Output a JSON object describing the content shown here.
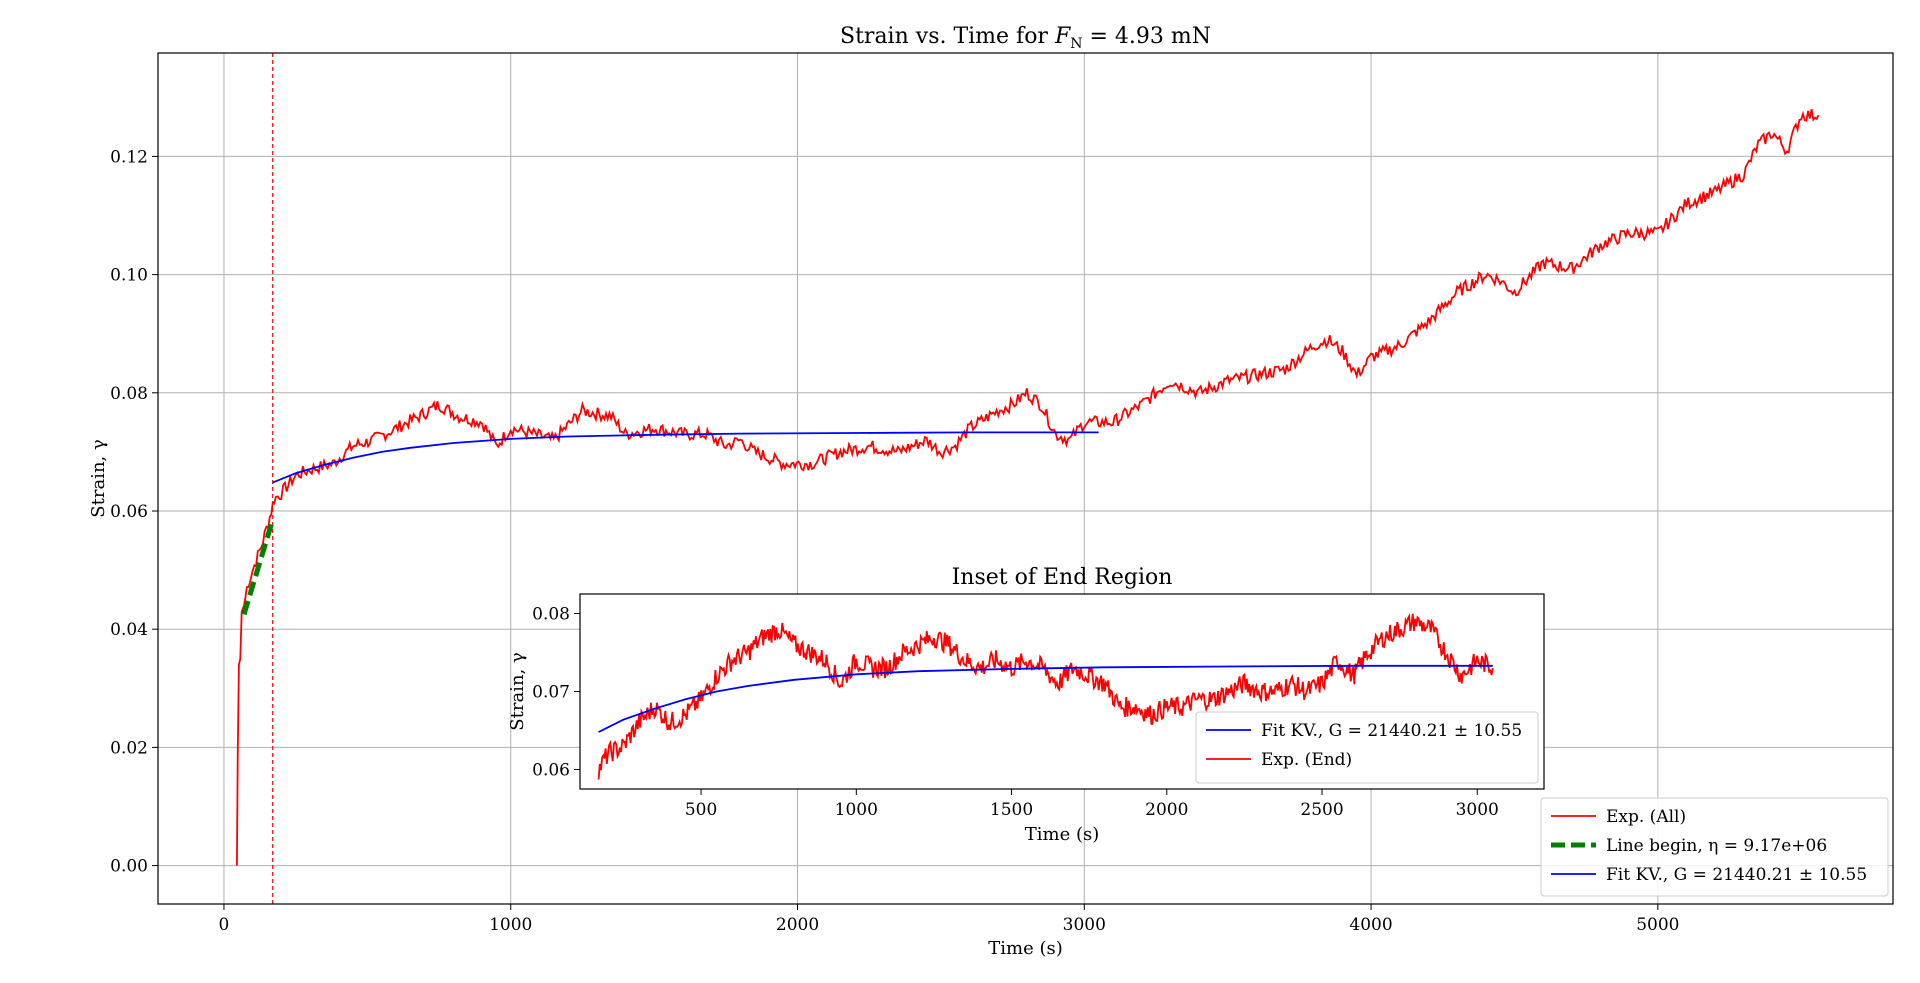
{
  "figure": {
    "background": "#ffffff"
  },
  "chart_data": [
    {
      "id": "main",
      "type": "line",
      "title": "Strain vs. Time for F_N = 4.93 mN",
      "xlabel": "Time (s)",
      "ylabel": "Strain, γ",
      "xlim": [
        -230,
        5820
      ],
      "ylim": [
        -0.0065,
        0.1375
      ],
      "xticks": [
        0,
        1000,
        2000,
        3000,
        4000,
        5000
      ],
      "xtick_labels": [
        "0",
        "1000",
        "2000",
        "3000",
        "4000",
        "5000"
      ],
      "yticks": [
        0.0,
        0.02,
        0.04,
        0.06,
        0.08,
        0.1,
        0.12
      ],
      "ytick_labels": [
        "0.00",
        "0.02",
        "0.04",
        "0.06",
        "0.08",
        "0.10",
        "0.12"
      ],
      "grid": true,
      "legend_position": "bottom-right",
      "vline": {
        "x": 170,
        "color": "#ff0000",
        "style": "dashed"
      },
      "series": [
        {
          "name": "Exp. (All)",
          "color": "#ff0000",
          "style": "solid",
          "x": [
            45,
            48,
            52,
            57,
            62,
            70,
            80,
            100,
            130,
            160,
            175,
            200,
            250,
            300,
            380,
            450,
            520,
            600,
            680,
            750,
            820,
            900,
            950,
            1000,
            1080,
            1150,
            1250,
            1350,
            1400,
            1500,
            1600,
            1680,
            1750,
            1800,
            1850,
            1950,
            2050,
            2150,
            2250,
            2350,
            2450,
            2500,
            2550,
            2600,
            2700,
            2750,
            2800,
            2850,
            2900,
            2950,
            3000,
            3050,
            3100,
            3200,
            3300,
            3350,
            3400,
            3500,
            3600,
            3700,
            3800,
            3850,
            3900,
            3950,
            4000,
            4100,
            4200,
            4300,
            4400,
            4450,
            4500,
            4600,
            4700,
            4800,
            4900,
            5000,
            5100,
            5200,
            5300,
            5350,
            5400,
            5450,
            5500,
            5560
          ],
          "y": [
            0.0,
            0.018,
            0.034,
            0.035,
            0.043,
            0.044,
            0.047,
            0.05,
            0.054,
            0.059,
            0.062,
            0.063,
            0.066,
            0.067,
            0.068,
            0.071,
            0.072,
            0.074,
            0.076,
            0.078,
            0.076,
            0.075,
            0.071,
            0.074,
            0.073,
            0.072,
            0.077,
            0.076,
            0.073,
            0.074,
            0.073,
            0.073,
            0.071,
            0.072,
            0.07,
            0.068,
            0.068,
            0.07,
            0.071,
            0.07,
            0.072,
            0.07,
            0.071,
            0.074,
            0.077,
            0.078,
            0.08,
            0.078,
            0.073,
            0.072,
            0.075,
            0.075,
            0.075,
            0.078,
            0.082,
            0.081,
            0.08,
            0.082,
            0.083,
            0.084,
            0.088,
            0.089,
            0.087,
            0.083,
            0.086,
            0.088,
            0.092,
            0.097,
            0.1,
            0.099,
            0.097,
            0.102,
            0.101,
            0.105,
            0.107,
            0.107,
            0.112,
            0.114,
            0.117,
            0.122,
            0.124,
            0.121,
            0.127,
            0.127
          ]
        },
        {
          "name": "Line begin, η = 9.17e+06",
          "color": "#008000",
          "style": "dashed",
          "x": [
            70,
            170
          ],
          "y": [
            0.0425,
            0.0585
          ]
        },
        {
          "name": "Fit KV., G = 21440.21 ± 10.55",
          "color": "#0000ff",
          "style": "solid",
          "x": [
            170,
            250,
            350,
            450,
            550,
            650,
            800,
            1000,
            1200,
            1500,
            1800,
            2200,
            2600,
            3050
          ],
          "y": [
            0.0648,
            0.0664,
            0.0678,
            0.069,
            0.07,
            0.0707,
            0.0715,
            0.0722,
            0.0726,
            0.0729,
            0.0731,
            0.0732,
            0.0733,
            0.0733
          ]
        }
      ]
    },
    {
      "id": "inset",
      "type": "line",
      "title": "Inset of End Region",
      "xlabel": "Time (s)",
      "ylabel": "Strain, γ",
      "xlim": [
        110,
        3215
      ],
      "ylim": [
        0.0575,
        0.0825
      ],
      "xticks": [
        500,
        1000,
        1500,
        2000,
        2500,
        3000
      ],
      "xtick_labels": [
        "500",
        "1000",
        "1500",
        "2000",
        "2500",
        "3000"
      ],
      "yticks": [
        0.06,
        0.07,
        0.08
      ],
      "ytick_labels": [
        "0.06",
        "0.07",
        "0.08"
      ],
      "grid": false,
      "legend_position": "bottom-right",
      "series": [
        {
          "name": "Fit KV., G = 21440.21 ± 10.55",
          "color": "#0000ff",
          "style": "solid",
          "x": [
            170,
            250,
            350,
            450,
            550,
            650,
            800,
            1000,
            1200,
            1500,
            1800,
            2200,
            2600,
            3050
          ],
          "y": [
            0.0648,
            0.0664,
            0.0678,
            0.069,
            0.07,
            0.0707,
            0.0715,
            0.0722,
            0.0726,
            0.0729,
            0.0731,
            0.0732,
            0.0733,
            0.0733
          ]
        },
        {
          "name": "Exp. (End)",
          "color": "#ff0000",
          "style": "solid",
          "x": [
            170,
            200,
            250,
            300,
            350,
            400,
            450,
            500,
            550,
            600,
            650,
            700,
            750,
            800,
            850,
            900,
            950,
            1000,
            1050,
            1100,
            1150,
            1200,
            1250,
            1300,
            1350,
            1400,
            1450,
            1500,
            1550,
            1600,
            1650,
            1700,
            1750,
            1800,
            1850,
            1900,
            1950,
            2000,
            2050,
            2100,
            2150,
            2200,
            2250,
            2300,
            2350,
            2400,
            2450,
            2500,
            2550,
            2600,
            2650,
            2700,
            2750,
            2800,
            2850,
            2900,
            2950,
            3000,
            3050
          ],
          "y": [
            0.06,
            0.062,
            0.063,
            0.066,
            0.068,
            0.066,
            0.067,
            0.069,
            0.072,
            0.074,
            0.075,
            0.077,
            0.078,
            0.076,
            0.075,
            0.074,
            0.071,
            0.074,
            0.073,
            0.073,
            0.075,
            0.076,
            0.077,
            0.076,
            0.074,
            0.073,
            0.074,
            0.073,
            0.074,
            0.073,
            0.071,
            0.073,
            0.072,
            0.071,
            0.068,
            0.068,
            0.067,
            0.068,
            0.068,
            0.069,
            0.069,
            0.07,
            0.071,
            0.07,
            0.07,
            0.071,
            0.07,
            0.071,
            0.074,
            0.072,
            0.075,
            0.077,
            0.078,
            0.079,
            0.078,
            0.075,
            0.072,
            0.074,
            0.073
          ]
        }
      ]
    }
  ]
}
